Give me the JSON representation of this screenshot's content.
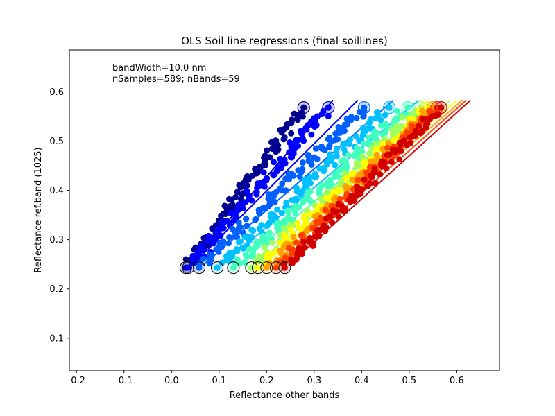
{
  "chart_data": {
    "type": "scatter",
    "title": "OLS Soil line regressions (final soillines)",
    "xlabel": "Reflectance other bands",
    "ylabel": "Reflectance ref.band (1025)",
    "xlim": [
      -0.215,
      0.69
    ],
    "ylim": [
      0.035,
      0.685
    ],
    "xticks": [
      "-0.2",
      "-0.1",
      "0.0",
      "0.1",
      "0.2",
      "0.3",
      "0.4",
      "0.5",
      "0.6"
    ],
    "xtick_values": [
      -0.2,
      -0.1,
      0.0,
      0.1,
      0.2,
      0.3,
      0.4,
      0.5,
      0.6
    ],
    "yticks": [
      "0.1",
      "0.2",
      "0.3",
      "0.4",
      "0.5",
      "0.6"
    ],
    "ytick_values": [
      0.1,
      0.2,
      0.3,
      0.4,
      0.5,
      0.6
    ],
    "annotations": [
      "bandWidth=10.0 nm",
      "nSamples=589; nBands=59"
    ],
    "colormap": "jet",
    "y_min": 0.243,
    "y_max": 0.568,
    "series": [
      {
        "color": "#00008f",
        "x_min": 0.03,
        "x_max": 0.278
      },
      {
        "color": "#0000ff",
        "x_min": 0.035,
        "x_max": 0.33
      },
      {
        "color": "#0060ff",
        "x_min": 0.058,
        "x_max": 0.405
      },
      {
        "color": "#00c0ff",
        "x_min": 0.096,
        "x_max": 0.458
      },
      {
        "color": "#40ffbf",
        "x_min": 0.13,
        "x_max": 0.497
      },
      {
        "color": "#a0ff60",
        "x_min": 0.168,
        "x_max": 0.525
      },
      {
        "color": "#ffff00",
        "x_min": 0.182,
        "x_max": 0.538
      },
      {
        "color": "#ffa000",
        "x_min": 0.2,
        "x_max": 0.55
      },
      {
        "color": "#ff4000",
        "x_min": 0.22,
        "x_max": 0.558
      },
      {
        "color": "#d00000",
        "x_min": 0.238,
        "x_max": 0.567
      }
    ]
  }
}
